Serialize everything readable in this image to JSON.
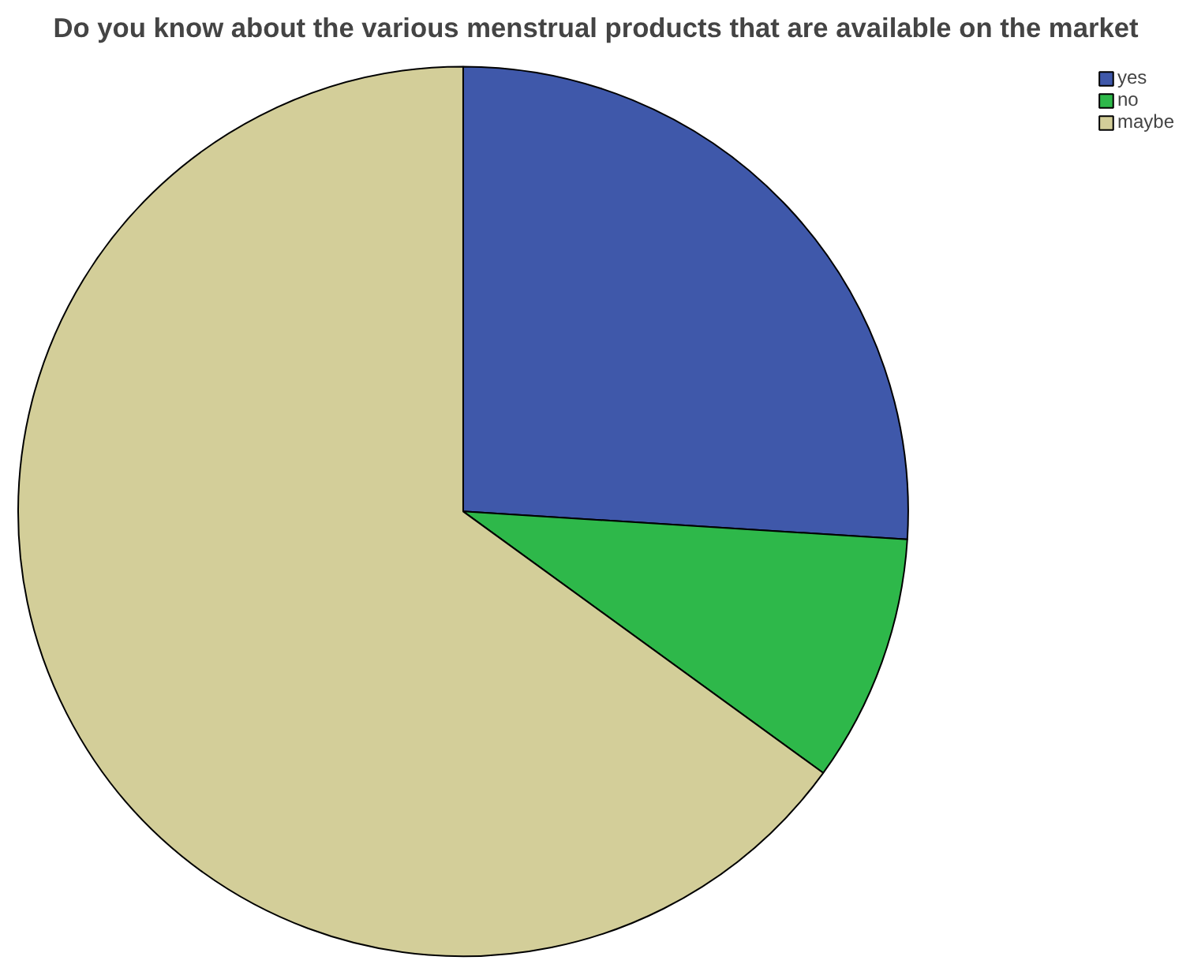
{
  "chart_data": {
    "type": "pie",
    "title": "Do you know about the various menstrual products that are available on the market",
    "categories": [
      "yes",
      "no",
      "maybe"
    ],
    "values": [
      26,
      9,
      65
    ],
    "colors": [
      "#3f58aa",
      "#2eb84a",
      "#d3ce99"
    ],
    "legend": "top right"
  }
}
